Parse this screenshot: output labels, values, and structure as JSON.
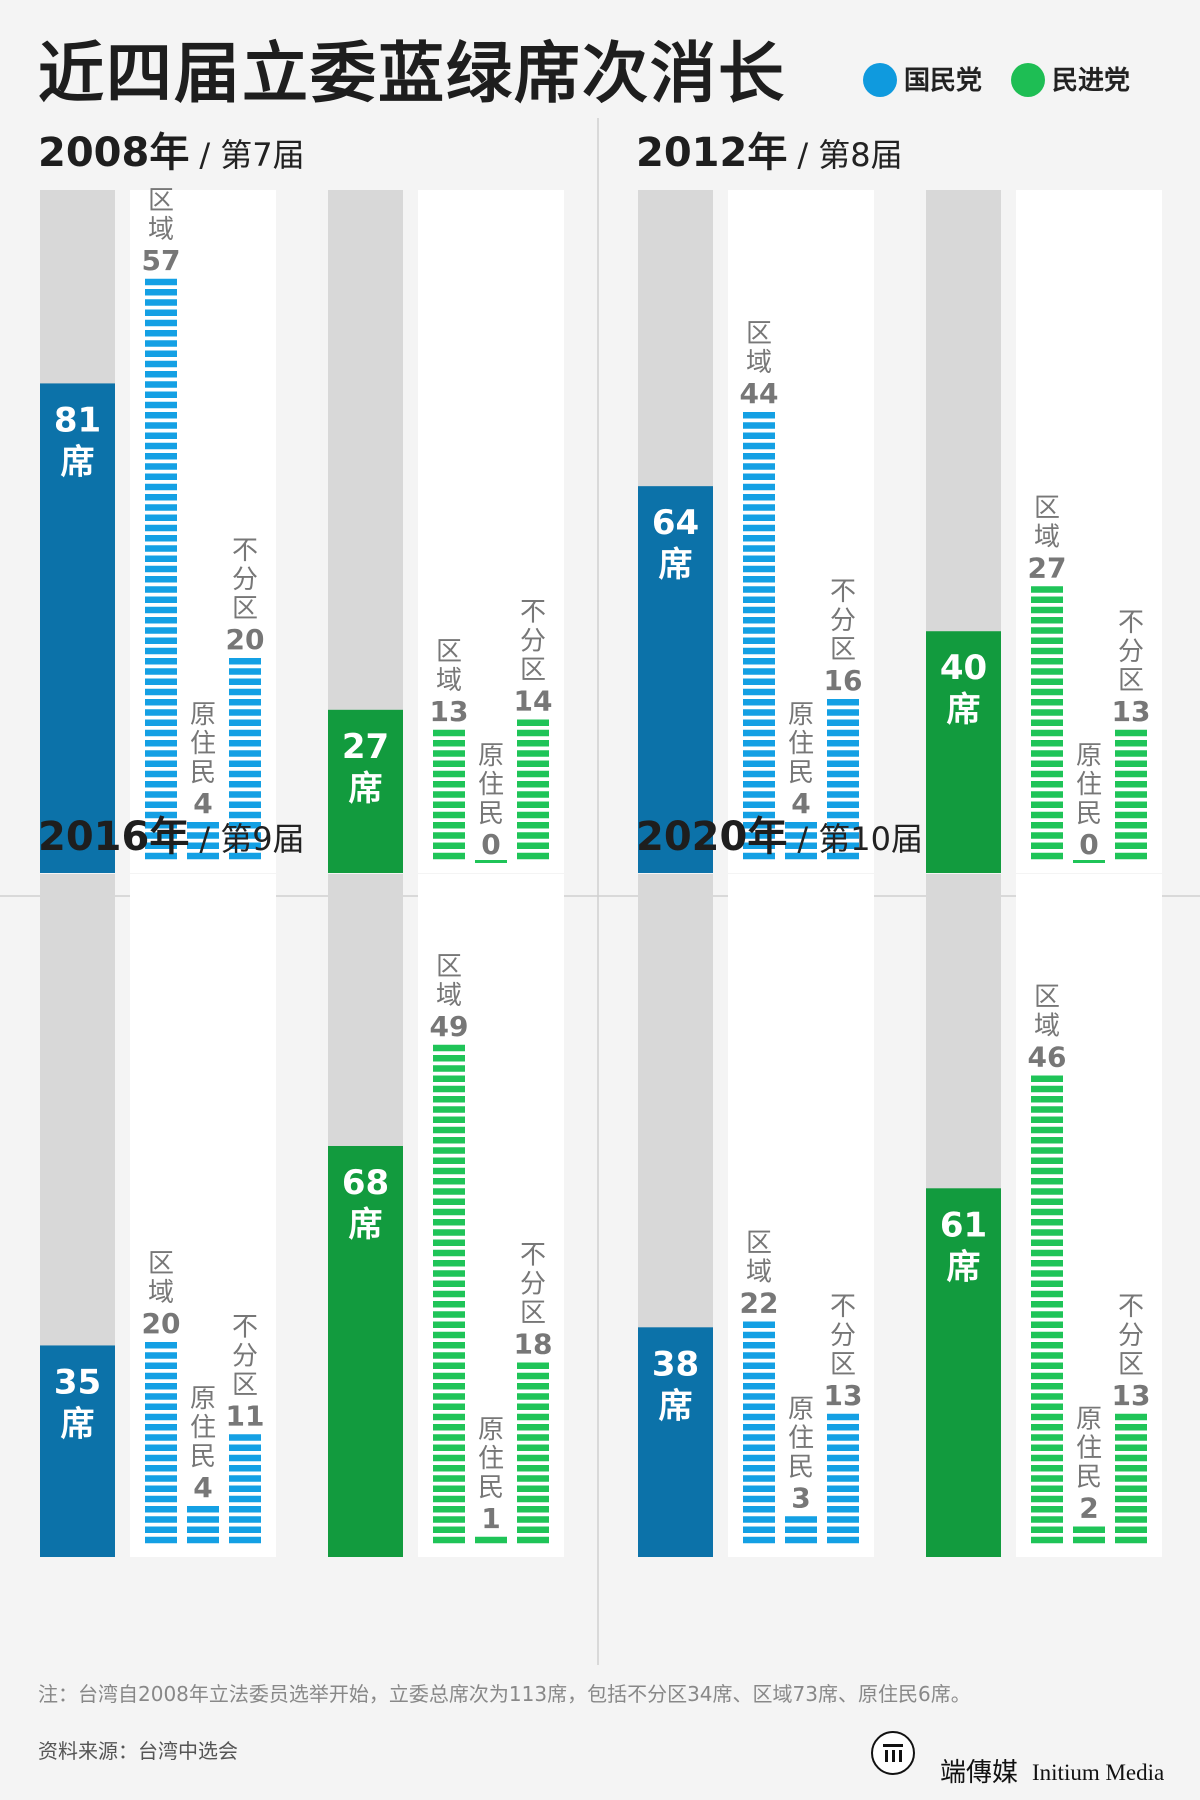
{
  "title": "近四届立委蓝绿席次消长",
  "legend": [
    {
      "name": "国民党",
      "color": "#0f9ade"
    },
    {
      "name": "民进党",
      "color": "#1ebe54"
    }
  ],
  "colors": {
    "kmt_total": "#0c72a9",
    "kmt_sub": "#14a0e4",
    "dpp_total": "#129b3e",
    "dpp_sub": "#1fc458",
    "bar_bg": "#d8d8d8",
    "panel_bg": "#ffffff"
  },
  "term_prefix": "/ ",
  "seat_unit": "席",
  "chart_data": {
    "type": "bar",
    "total_seats": 113,
    "categories": [
      "区域",
      "原住民",
      "不分区"
    ],
    "elections": [
      {
        "year": "2008年",
        "term": "第7届",
        "parties": [
          {
            "party": "国民党",
            "total": 81,
            "values": [
              57,
              4,
              20
            ]
          },
          {
            "party": "民进党",
            "total": 27,
            "values": [
              13,
              0,
              14
            ]
          }
        ]
      },
      {
        "year": "2012年",
        "term": "第8届",
        "parties": [
          {
            "party": "国民党",
            "total": 64,
            "values": [
              44,
              4,
              16
            ]
          },
          {
            "party": "民进党",
            "total": 40,
            "values": [
              27,
              0,
              13
            ]
          }
        ]
      },
      {
        "year": "2016年",
        "term": "第9届",
        "parties": [
          {
            "party": "国民党",
            "total": 35,
            "values": [
              20,
              4,
              11
            ]
          },
          {
            "party": "民进党",
            "total": 68,
            "values": [
              49,
              1,
              18
            ]
          }
        ]
      },
      {
        "year": "2020年",
        "term": "第10届",
        "parties": [
          {
            "party": "国民党",
            "total": 38,
            "values": [
              22,
              3,
              13
            ]
          },
          {
            "party": "民进党",
            "total": 61,
            "values": [
              46,
              2,
              13
            ]
          }
        ]
      }
    ]
  },
  "note": "注：台湾自2008年立法委员选举开始，立委总席次为113席，包括不分区34席、区域73席、原住民6席。",
  "source": "资料来源：台湾中选会",
  "brand": {
    "cn": "端傳媒",
    "en": "Initium Media"
  }
}
